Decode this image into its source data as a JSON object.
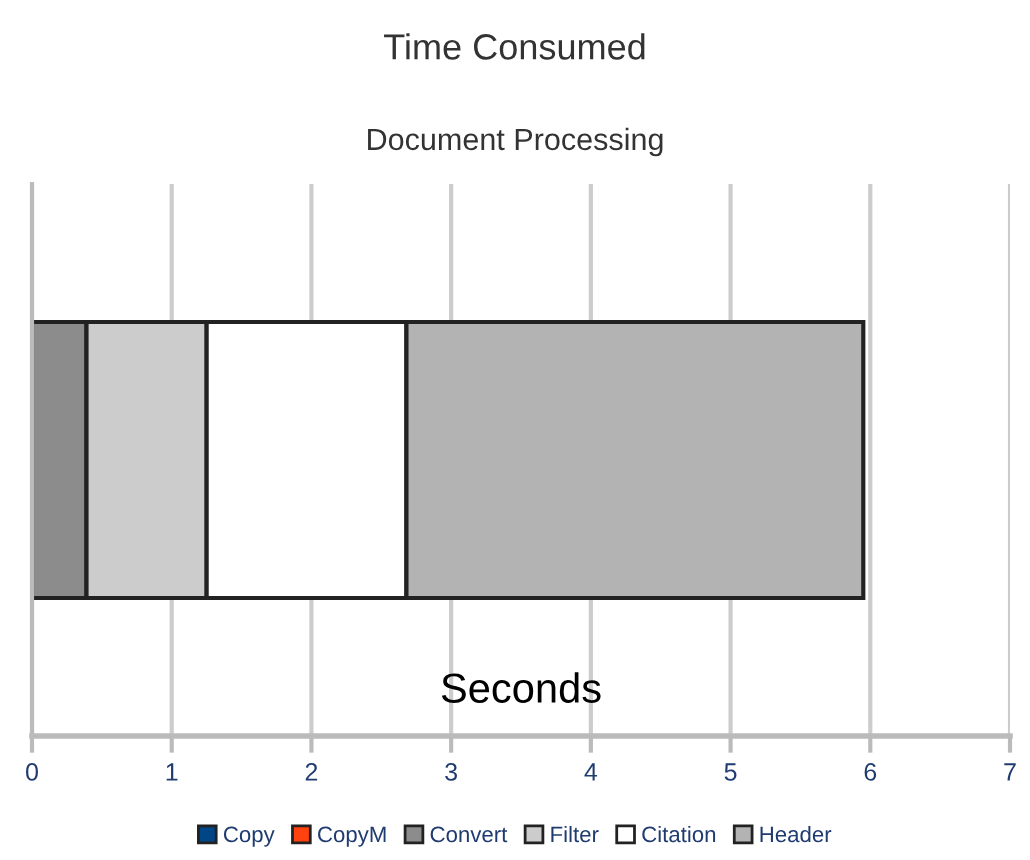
{
  "chart_data": {
    "type": "bar",
    "title": "Time Consumed",
    "subtitle": "Document Processing",
    "xlabel": "Seconds",
    "orientation": "horizontal",
    "stacked": true,
    "categories": [
      null
    ],
    "series": [
      {
        "name": "Copy",
        "color": "#004586",
        "values": [
          0
        ]
      },
      {
        "name": "CopyM",
        "color": "#ff420e",
        "values": [
          0
        ]
      },
      {
        "name": "Convert",
        "color": "#8c8c8c",
        "values": [
          0.39
        ]
      },
      {
        "name": "Filter",
        "color": "#cccccc",
        "values": [
          0.86
        ]
      },
      {
        "name": "Citation",
        "color": "#ffffff",
        "values": [
          1.43
        ]
      },
      {
        "name": "Header",
        "color": "#b3b3b3",
        "values": [
          3.27
        ]
      }
    ],
    "xlim": [
      0,
      7
    ],
    "xticks": [
      0,
      1,
      2,
      3,
      4,
      5,
      6,
      7
    ],
    "grid": "x",
    "legend": "bottom"
  }
}
